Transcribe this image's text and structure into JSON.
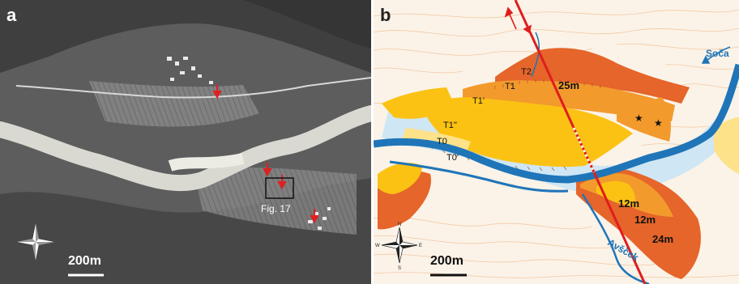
{
  "panel_a": {
    "letter": "a",
    "figure_ref": "Fig. 17",
    "scale_label": "200m"
  },
  "panel_b": {
    "letter": "b",
    "scale_label": "200m",
    "terraces": {
      "t2": "T2",
      "t1": "T1",
      "t1_prime": "T1'",
      "t1_double_prime": "T1''",
      "t0": "T0",
      "t0_prime": "T0'"
    },
    "offsets": {
      "upper": "25m",
      "lower_a": "12m",
      "lower_b": "12m",
      "lower_c": "24m"
    },
    "rivers": {
      "main": "Soča",
      "tributary": "Avšček"
    },
    "compass_letters": {
      "north": "N",
      "south": "S",
      "east": "E",
      "west": "W"
    }
  },
  "colors": {
    "river": "#1f75b8",
    "fault": "#e01d1d",
    "t2": "#e5652a",
    "t1": "#f39a2d",
    "t1_prime": "#fbc214",
    "t0": "#fde28a",
    "floodplain": "#cfe6f4",
    "contour": "#f2c9a4"
  }
}
